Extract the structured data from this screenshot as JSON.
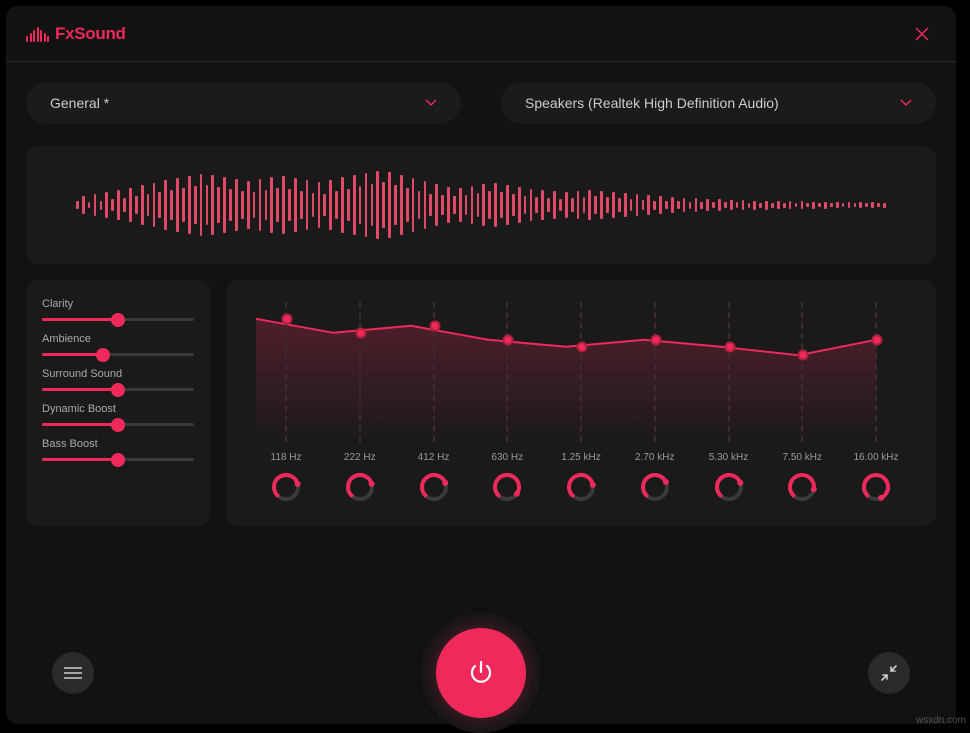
{
  "colors": {
    "accent": "#ef2a5b",
    "panel": "#1a1a1a",
    "bg": "#121212",
    "track": "#3a3a3a",
    "text_dim": "#aaa"
  },
  "header": {
    "logo_text": "FxSound",
    "logo_bar_heights": [
      6,
      9,
      12,
      15,
      12,
      9,
      6
    ]
  },
  "dropdowns": {
    "preset": "General *",
    "output": "Speakers (Realtek High Definition Audio)"
  },
  "waveform": {
    "bars": [
      8,
      18,
      6,
      22,
      9,
      26,
      12,
      30,
      14,
      34,
      18,
      40,
      22,
      44,
      26,
      50,
      30,
      54,
      34,
      58,
      38,
      62,
      40,
      60,
      36,
      56,
      32,
      52,
      28,
      48,
      26,
      52,
      30,
      56,
      34,
      58,
      32,
      54,
      28,
      50,
      24,
      46,
      22,
      50,
      28,
      56,
      32,
      60,
      38,
      64,
      42,
      68,
      46,
      66,
      40,
      60,
      34,
      54,
      28,
      48,
      22,
      42,
      20,
      36,
      18,
      34,
      20,
      38,
      24,
      42,
      28,
      44,
      26,
      40,
      22,
      36,
      18,
      32,
      16,
      30,
      14,
      28,
      12,
      26,
      14,
      28,
      16,
      30,
      18,
      28,
      16,
      26,
      14,
      24,
      12,
      22,
      10,
      20,
      9,
      18,
      8,
      16,
      8,
      14,
      7,
      14,
      7,
      12,
      6,
      12,
      6,
      10,
      6,
      10,
      5,
      9,
      5,
      9,
      5,
      8,
      5,
      8,
      4,
      8,
      4,
      7,
      4,
      7,
      4,
      6,
      4,
      6,
      4,
      6,
      4,
      6,
      4,
      5
    ]
  },
  "sliders": [
    {
      "label": "Clarity",
      "value": 50
    },
    {
      "label": "Ambience",
      "value": 40
    },
    {
      "label": "Surround Sound",
      "value": 50
    },
    {
      "label": "Dynamic Boost",
      "value": 50
    },
    {
      "label": "Bass Boost",
      "value": 50
    }
  ],
  "eq": {
    "bands": [
      {
        "freq": "118 Hz",
        "y": 12,
        "knob": 210
      },
      {
        "freq": "222 Hz",
        "y": 22,
        "knob": 210
      },
      {
        "freq": "412 Hz",
        "y": 17,
        "knob": 205
      },
      {
        "freq": "630 Hz",
        "y": 27,
        "knob": 260
      },
      {
        "freq": "1.25 kHz",
        "y": 32,
        "knob": 215
      },
      {
        "freq": "2.70 kHz",
        "y": 27,
        "knob": 200
      },
      {
        "freq": "5.30 kHz",
        "y": 32,
        "knob": 205
      },
      {
        "freq": "7.50 kHz",
        "y": 38,
        "knob": 235
      },
      {
        "freq": "16.00 kHz",
        "y": 27,
        "knob": 290
      }
    ],
    "curve_w": 620,
    "curve_h": 140
  },
  "watermark": "wsxdn.com"
}
